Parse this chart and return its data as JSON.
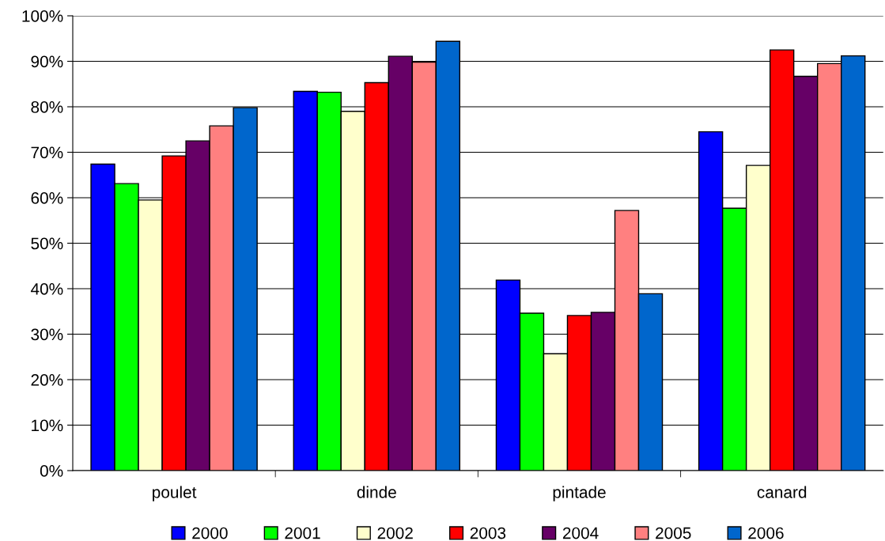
{
  "chart_data": {
    "type": "bar",
    "categories": [
      "poulet",
      "dinde",
      "pintade",
      "canard"
    ],
    "series": [
      {
        "name": "2000",
        "color": "#0000ff",
        "values": [
          67.4,
          83.4,
          41.9,
          74.5
        ]
      },
      {
        "name": "2001",
        "color": "#00ff00",
        "values": [
          63.1,
          83.2,
          34.6,
          57.7
        ]
      },
      {
        "name": "2002",
        "color": "#ffffcc",
        "values": [
          59.5,
          79.0,
          25.7,
          67.1
        ]
      },
      {
        "name": "2003",
        "color": "#ff0000",
        "values": [
          69.2,
          85.3,
          34.1,
          92.5
        ]
      },
      {
        "name": "2004",
        "color": "#660066",
        "values": [
          72.5,
          91.1,
          34.8,
          86.7
        ]
      },
      {
        "name": "2005",
        "color": "#ff8080",
        "values": [
          75.8,
          89.8,
          57.2,
          89.5
        ]
      },
      {
        "name": "2006",
        "color": "#0066cc",
        "values": [
          79.8,
          94.4,
          38.9,
          91.2
        ]
      }
    ],
    "ylim": [
      0,
      100
    ],
    "yticks": [
      {
        "value": 0,
        "label": "0%"
      },
      {
        "value": 10,
        "label": "10%"
      },
      {
        "value": 20,
        "label": "20%"
      },
      {
        "value": 30,
        "label": "30%"
      },
      {
        "value": 40,
        "label": "40%"
      },
      {
        "value": 50,
        "label": "50%"
      },
      {
        "value": 60,
        "label": "60%"
      },
      {
        "value": 70,
        "label": "70%"
      },
      {
        "value": 80,
        "label": "80%"
      },
      {
        "value": 90,
        "label": "90%"
      },
      {
        "value": 100,
        "label": "100%"
      }
    ],
    "grid": "y",
    "legend": "bottom"
  }
}
